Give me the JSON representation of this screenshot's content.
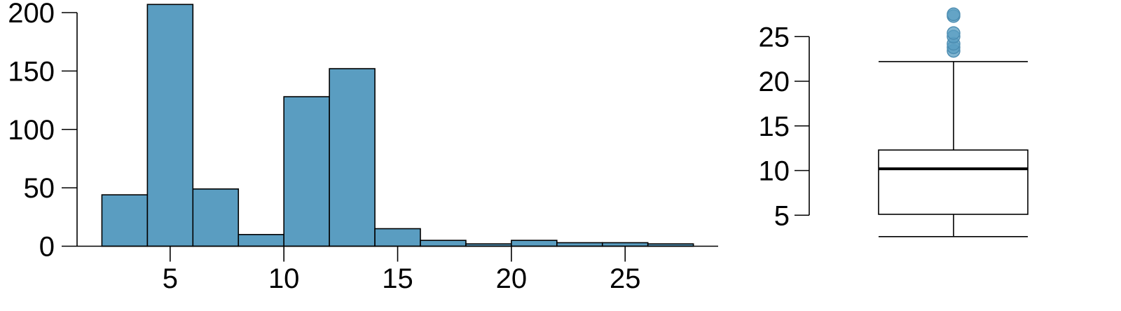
{
  "chart_data": [
    {
      "type": "bar",
      "title": "",
      "xlabel": "",
      "ylabel": "",
      "bin_edges": [
        2,
        4,
        6,
        8,
        10,
        12,
        14,
        16,
        18,
        20,
        22,
        24,
        26,
        28
      ],
      "values": [
        44,
        207,
        49,
        10,
        128,
        152,
        15,
        5,
        2,
        5,
        3,
        3,
        2
      ],
      "xlim": [
        0,
        30
      ],
      "ylim": [
        0,
        200
      ],
      "xticks": [
        5,
        10,
        15,
        20,
        25
      ],
      "yticks": [
        0,
        50,
        100,
        150,
        200
      ],
      "grid": false,
      "bar_color": "#5a9dc1"
    },
    {
      "type": "box",
      "title": "",
      "ylabel": "",
      "lower_whisker": 2.6,
      "q1": 5.1,
      "median": 10.2,
      "q3": 12.3,
      "upper_whisker": 22.2,
      "outliers": [
        23.4,
        23.8,
        24.2,
        25.0,
        25.4,
        27.3,
        27.5
      ],
      "yticks": [
        5,
        10,
        15,
        20,
        25
      ],
      "ylim": [
        5,
        25
      ],
      "grid": false,
      "outlier_color": "#5a9dc1"
    }
  ]
}
